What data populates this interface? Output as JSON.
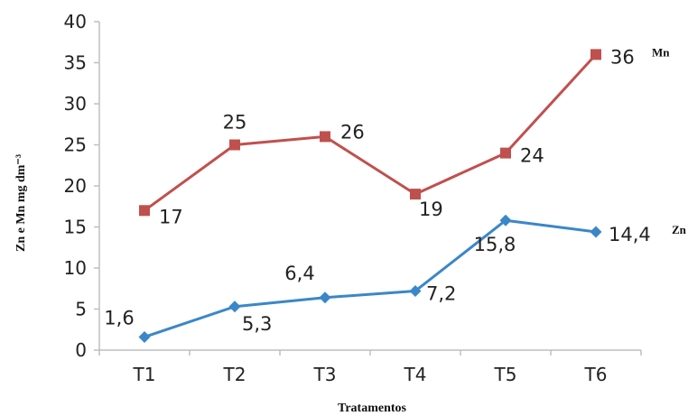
{
  "chart_data": {
    "type": "line",
    "categories": [
      "T1",
      "T2",
      "T3",
      "T4",
      "T5",
      "T6"
    ],
    "xlabel": "Tratamentos",
    "ylabel": "Zn e Mn mg dm⁻³",
    "ylim": [
      0,
      40
    ],
    "yticks": [
      "0",
      "5",
      "10",
      "15",
      "20",
      "25",
      "30",
      "35",
      "40"
    ],
    "grid": false,
    "series": [
      {
        "name": "Mn",
        "color": "#c0504d",
        "marker": "square",
        "values": [
          17,
          25,
          26,
          19,
          24,
          36
        ],
        "labels": [
          "17",
          "25",
          "26",
          "19",
          "24",
          "36"
        ]
      },
      {
        "name": "Zn",
        "color": "#3a87c8",
        "marker": "diamond",
        "values": [
          1.6,
          5.3,
          6.4,
          7.2,
          15.8,
          14.4
        ],
        "labels": [
          "1,6",
          "5,3",
          "6,4",
          "7,2",
          "15,8",
          "14,4"
        ]
      }
    ]
  }
}
